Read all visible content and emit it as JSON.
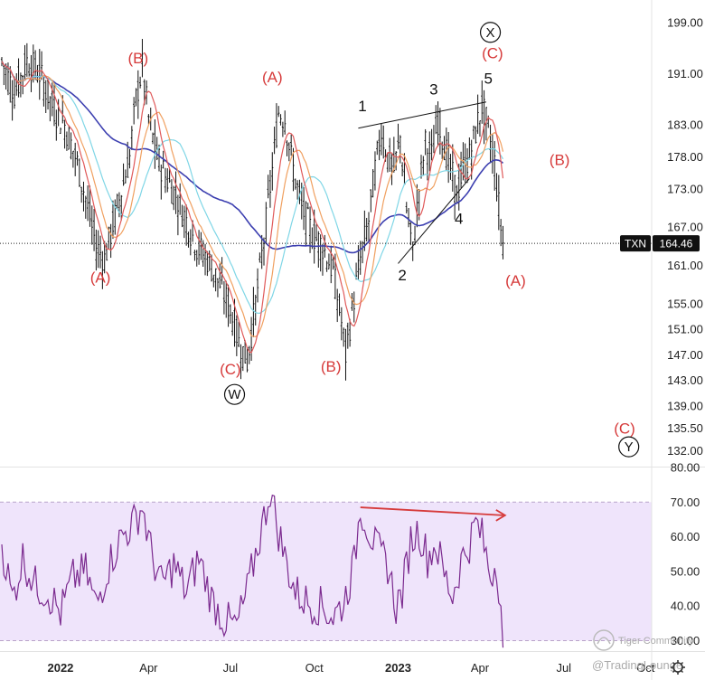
{
  "chart_data": [
    {
      "type": "candlestick",
      "symbol": "TXN",
      "last_price": 164.46,
      "last_price_label": "164.46",
      "ylim": [
        129.5,
        202
      ],
      "y_ticks": [
        "199.00",
        "191.00",
        "183.00",
        "178.00",
        "173.00",
        "167.00",
        "161.00",
        "155.00",
        "151.00",
        "147.00",
        "143.00",
        "139.00",
        "135.50",
        "132.00"
      ],
      "x_ticks": [
        {
          "label": "2022",
          "bold": true
        },
        {
          "label": "Apr",
          "bold": false
        },
        {
          "label": "Jul",
          "bold": false
        },
        {
          "label": "Oct",
          "bold": false
        },
        {
          "label": "2023",
          "bold": true
        },
        {
          "label": "Apr",
          "bold": false
        },
        {
          "label": "Jul",
          "bold": false
        },
        {
          "label": "Oct",
          "bold": false
        }
      ],
      "price_anchors": [
        [
          0,
          193
        ],
        [
          6,
          188
        ],
        [
          12,
          193
        ],
        [
          18,
          191
        ],
        [
          24,
          186
        ],
        [
          30,
          183
        ],
        [
          36,
          177
        ],
        [
          41,
          170
        ],
        [
          45,
          164
        ],
        [
          49,
          162
        ],
        [
          55,
          170
        ],
        [
          61,
          178
        ],
        [
          64,
          187
        ],
        [
          67,
          192
        ],
        [
          70,
          184
        ],
        [
          74,
          178
        ],
        [
          78,
          175
        ],
        [
          83,
          172
        ],
        [
          88,
          168
        ],
        [
          93,
          164
        ],
        [
          98,
          162
        ],
        [
          104,
          158
        ],
        [
          109,
          154
        ],
        [
          113,
          149
        ],
        [
          117,
          146
        ],
        [
          121,
          155
        ],
        [
          125,
          165
        ],
        [
          129,
          176
        ],
        [
          132,
          185
        ],
        [
          135,
          184
        ],
        [
          139,
          176
        ],
        [
          143,
          170
        ],
        [
          148,
          166
        ],
        [
          153,
          164
        ],
        [
          158,
          160
        ],
        [
          162,
          152
        ],
        [
          164,
          147
        ],
        [
          167,
          154
        ],
        [
          171,
          162
        ],
        [
          175,
          168
        ],
        [
          178,
          176
        ],
        [
          181,
          182
        ],
        [
          184,
          178
        ],
        [
          187,
          176
        ],
        [
          190,
          181
        ],
        [
          193,
          170
        ],
        [
          196,
          163
        ],
        [
          199,
          173
        ],
        [
          202,
          180
        ],
        [
          205,
          178
        ],
        [
          208,
          184
        ],
        [
          211,
          180
        ],
        [
          214,
          176
        ],
        [
          217,
          172
        ],
        [
          220,
          176
        ],
        [
          223,
          178
        ],
        [
          226,
          182
        ],
        [
          229,
          186
        ],
        [
          232,
          182
        ],
        [
          235,
          177
        ],
        [
          238,
          167
        ],
        [
          239,
          164.5
        ]
      ],
      "price_ma_series": [
        "short-ma-red",
        "mid-ma-orange",
        "mid-ma-cyan",
        "long-ma-blue"
      ],
      "wave_labels": [
        {
          "text": "(B)",
          "x": 65,
          "price": 193.5,
          "color": "red"
        },
        {
          "text": "(A)",
          "x": 47,
          "price": 159.2,
          "color": "red"
        },
        {
          "text": "(A)",
          "x": 129,
          "price": 190.5,
          "color": "red"
        },
        {
          "text": "(C)",
          "x": 109,
          "price": 144.8,
          "color": "red"
        },
        {
          "text": "(B)",
          "x": 157,
          "price": 145.2,
          "color": "red"
        },
        {
          "text": "(C)",
          "x": 234,
          "price": 194.3,
          "color": "red"
        },
        {
          "text": "(B)",
          "x": 266,
          "price": 177.6,
          "color": "red"
        },
        {
          "text": "(A)",
          "x": 245,
          "price": 158.7,
          "color": "red"
        },
        {
          "text": "(C)",
          "x": 297,
          "price": 135.5,
          "color": "red"
        },
        {
          "text": "1",
          "x": 172,
          "price": 186.0,
          "color": "black"
        },
        {
          "text": "2",
          "x": 191,
          "price": 159.5,
          "color": "black"
        },
        {
          "text": "3",
          "x": 206,
          "price": 188.6,
          "color": "black"
        },
        {
          "text": "4",
          "x": 218,
          "price": 168.4,
          "color": "black"
        },
        {
          "text": "5",
          "x": 232,
          "price": 190.3,
          "color": "black"
        }
      ],
      "circled_labels": [
        {
          "text": "W",
          "x": 111,
          "price": 140.8
        },
        {
          "text": "X",
          "x": 233,
          "price": 197.5
        },
        {
          "text": "Y",
          "x": 299,
          "price": 132.6
        }
      ],
      "wave_lines": [
        {
          "from": [
            170,
            182.5
          ],
          "to": [
            231,
            186.6
          ]
        },
        {
          "from": [
            189,
            161.3
          ],
          "to": [
            223,
            174.6
          ]
        }
      ]
    },
    {
      "type": "line",
      "indicator": "oscillator",
      "ylim": [
        27,
        80
      ],
      "y_ticks": [
        "80.00",
        "70.00",
        "60.00",
        "50.00",
        "40.00",
        "30.00"
      ],
      "band": [
        30,
        70
      ],
      "anchors": [
        [
          0,
          58
        ],
        [
          5,
          42
        ],
        [
          10,
          54
        ],
        [
          16,
          46
        ],
        [
          22,
          44
        ],
        [
          28,
          38
        ],
        [
          34,
          48
        ],
        [
          40,
          50
        ],
        [
          45,
          40
        ],
        [
          51,
          52
        ],
        [
          57,
          60
        ],
        [
          63,
          64
        ],
        [
          67,
          69
        ],
        [
          71,
          56
        ],
        [
          76,
          46
        ],
        [
          82,
          52
        ],
        [
          88,
          44
        ],
        [
          94,
          54
        ],
        [
          100,
          42
        ],
        [
          106,
          36
        ],
        [
          112,
          34
        ],
        [
          117,
          44
        ],
        [
          121,
          55
        ],
        [
          125,
          65
        ],
        [
          128,
          74
        ],
        [
          131,
          64
        ],
        [
          135,
          54
        ],
        [
          140,
          44
        ],
        [
          146,
          41
        ],
        [
          152,
          40
        ],
        [
          158,
          37
        ],
        [
          163,
          41
        ],
        [
          168,
          52
        ],
        [
          171,
          69
        ],
        [
          175,
          62
        ],
        [
          179,
          56
        ],
        [
          184,
          52
        ],
        [
          188,
          40
        ],
        [
          191,
          44
        ],
        [
          195,
          59
        ],
        [
          199,
          62
        ],
        [
          203,
          54
        ],
        [
          207,
          58
        ],
        [
          211,
          49
        ],
        [
          215,
          43
        ],
        [
          219,
          53
        ],
        [
          223,
          58
        ],
        [
          226,
          64
        ],
        [
          229,
          60
        ],
        [
          233,
          49
        ],
        [
          236,
          53
        ],
        [
          238,
          40
        ],
        [
          239,
          28
        ]
      ],
      "divergence_arrow": {
        "from": [
          171,
          68.5
        ],
        "to": [
          240,
          66.2
        ]
      }
    }
  ],
  "watermark": {
    "brand": "Tiger Community",
    "handle": "@TradingLounge"
  }
}
